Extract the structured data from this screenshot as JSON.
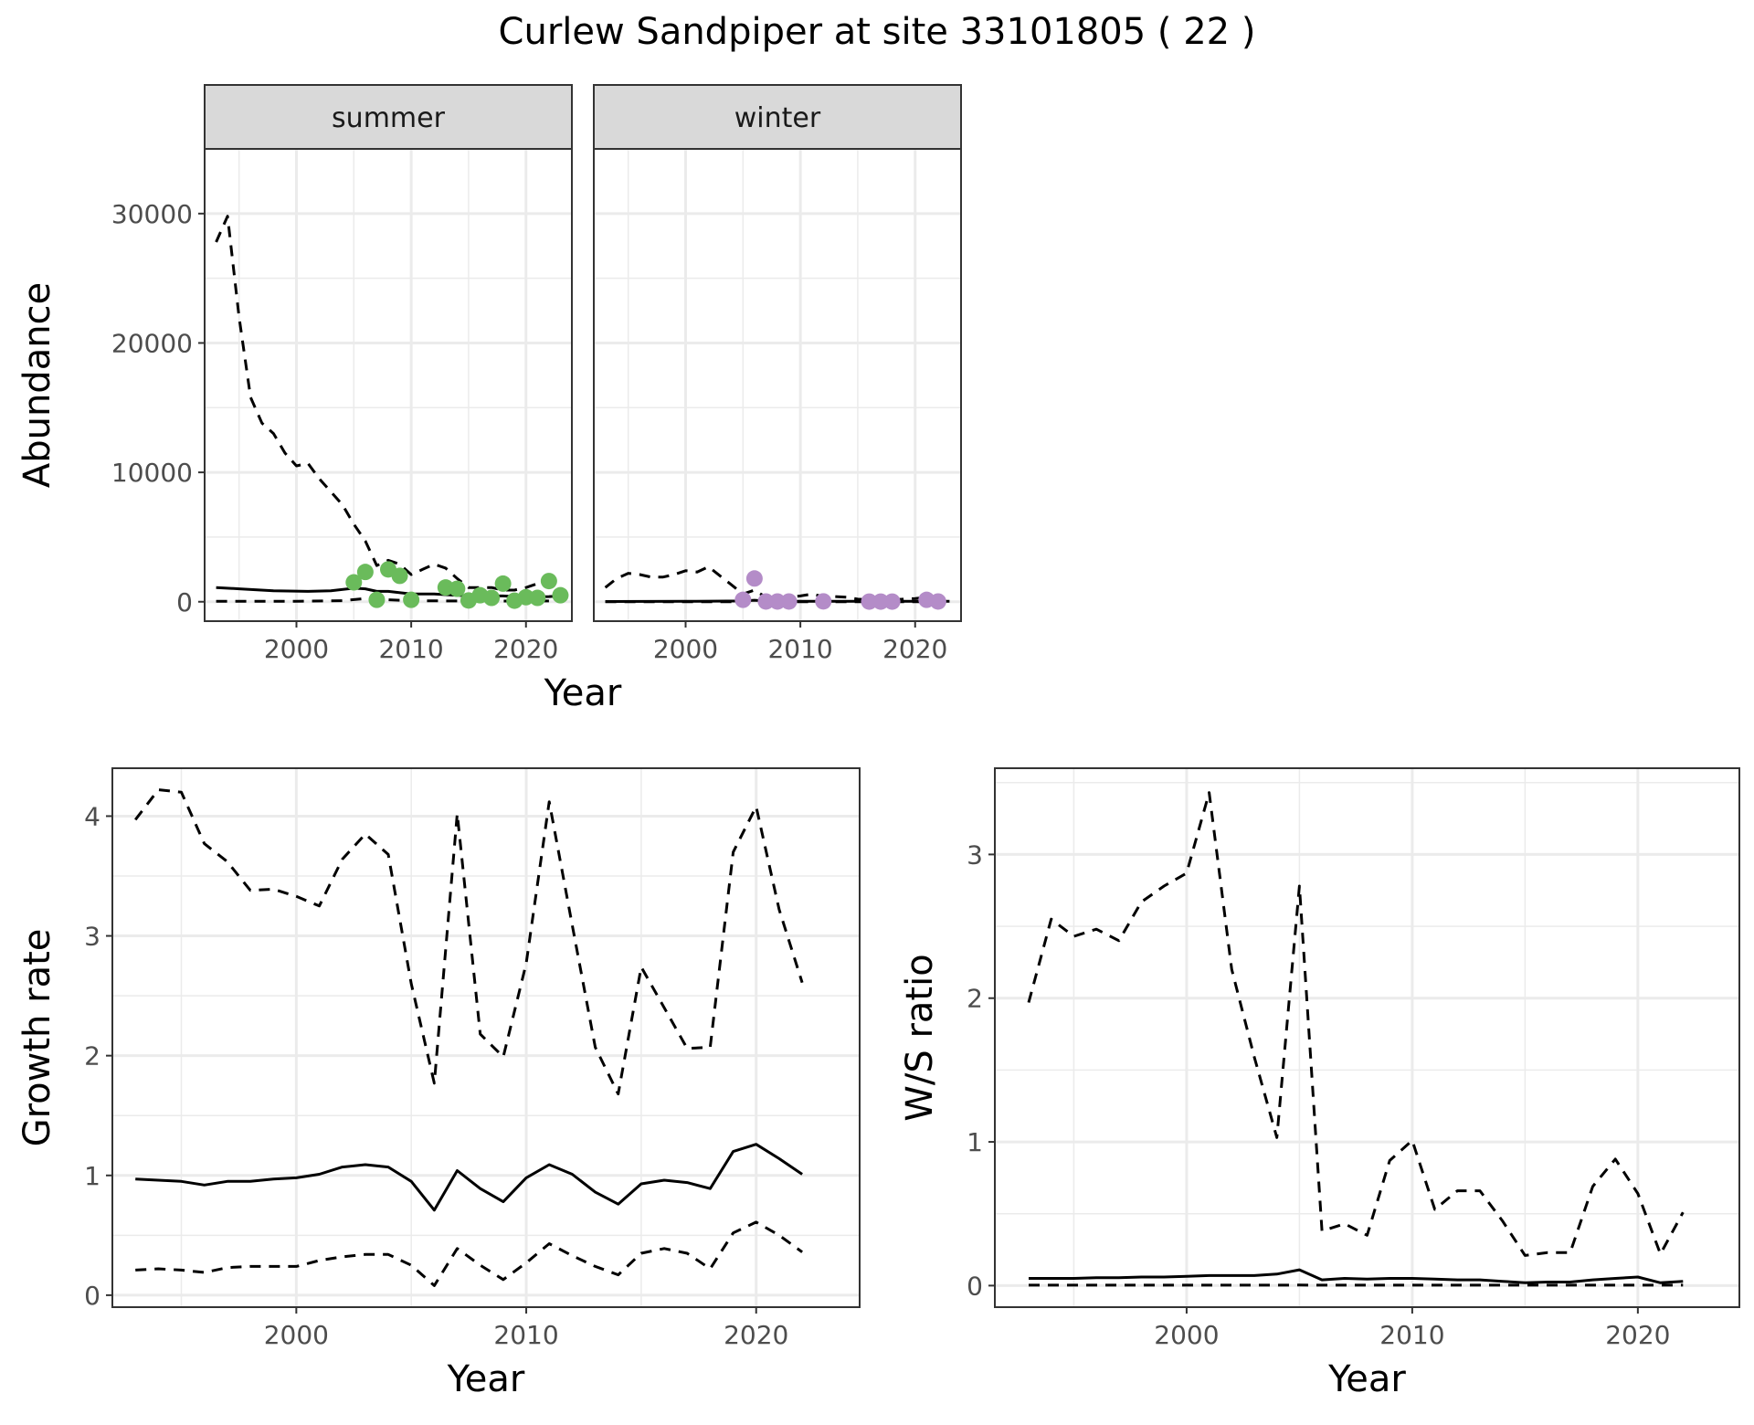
{
  "title": "Curlew Sandpiper at site 33101805 ( 22 )",
  "colors": {
    "summer_points": "#6ABB5B",
    "winter_points": "#B48CC8",
    "line": "#000000",
    "strip_fill": "#D9D9D9",
    "grid": "#EBEBEB"
  },
  "chart_data": [
    {
      "type": "line",
      "panel": "abundance",
      "facets": [
        "summer",
        "winter"
      ],
      "xlabel": "Year",
      "ylabel": "Abundance",
      "xlim": [
        1992,
        2024
      ],
      "ylim": [
        -1500,
        35000
      ],
      "xticks": [
        2000,
        2010,
        2020
      ],
      "yticks": [
        0,
        10000,
        20000,
        30000
      ],
      "grid": true,
      "facet_data": [
        {
          "label": "summer",
          "point_color": "summer_points",
          "points": {
            "x": [
              2005,
              2006,
              2007,
              2008,
              2009,
              2010,
              2013,
              2014,
              2015,
              2016,
              2017,
              2018,
              2019,
              2020,
              2021,
              2022,
              2023
            ],
            "y": [
              1500,
              2300,
              150,
              2500,
              2000,
              150,
              1100,
              1000,
              100,
              500,
              300,
              1400,
              80,
              350,
              300,
              1600,
              500
            ]
          },
          "series": [
            {
              "style": "solid",
              "x": [
                1993,
                1995,
                1998,
                2001,
                2003,
                2005,
                2006,
                2007,
                2008,
                2010,
                2012,
                2014,
                2016,
                2018,
                2020,
                2022,
                2023
              ],
              "values": [
                1100,
                1000,
                850,
                800,
                850,
                1050,
                1000,
                800,
                800,
                600,
                600,
                500,
                450,
                450,
                350,
                400,
                450
              ]
            },
            {
              "style": "dashed",
              "x": [
                1993,
                1994,
                1995,
                1996,
                1997,
                1998,
                1999,
                2000,
                2001,
                2002,
                2003,
                2004,
                2005,
                2006,
                2007,
                2008,
                2009,
                2010,
                2011,
                2012,
                2013,
                2014,
                2015,
                2016,
                2017,
                2018,
                2019,
                2020,
                2021,
                2022
              ],
              "values": [
                27800,
                29800,
                22000,
                15800,
                13800,
                13000,
                11500,
                10500,
                10700,
                9500,
                8500,
                7500,
                6000,
                4700,
                2800,
                3200,
                2900,
                2100,
                2500,
                2900,
                2600,
                1800,
                1100,
                1100,
                1100,
                900,
                900,
                1100,
                1400,
                2100
              ]
            },
            {
              "style": "dashed",
              "x": [
                1993,
                2000,
                2004,
                2006,
                2008,
                2010,
                2014,
                2018,
                2022
              ],
              "values": [
                30,
                40,
                80,
                250,
                150,
                80,
                60,
                50,
                60
              ]
            }
          ]
        },
        {
          "label": "winter",
          "point_color": "winter_points",
          "points": {
            "x": [
              2005,
              2006,
              2007,
              2008,
              2009,
              2012,
              2016,
              2017,
              2018,
              2021,
              2022
            ],
            "y": [
              150,
              1800,
              20,
              20,
              20,
              30,
              10,
              10,
              10,
              150,
              20
            ]
          },
          "series": [
            {
              "style": "solid",
              "x": [
                1993,
                2000,
                2005,
                2006,
                2007,
                2010,
                2015,
                2020,
                2023
              ],
              "values": [
                20,
                30,
                60,
                120,
                50,
                40,
                30,
                30,
                30
              ]
            },
            {
              "style": "dashed",
              "x": [
                1993,
                1994,
                1995,
                1996,
                1997,
                1998,
                1999,
                2000,
                2001,
                2002,
                2003,
                2004,
                2005,
                2006,
                2007,
                2008,
                2009,
                2010,
                2011,
                2012,
                2013,
                2014,
                2015,
                2016,
                2017,
                2018,
                2019,
                2020,
                2021,
                2022
              ],
              "values": [
                1100,
                1800,
                2200,
                2100,
                1900,
                1900,
                2100,
                2400,
                2300,
                2700,
                2000,
                1300,
                600,
                900,
                350,
                300,
                350,
                450,
                600,
                400,
                400,
                350,
                200,
                150,
                150,
                150,
                200,
                250,
                350,
                350
              ]
            },
            {
              "style": "dashed",
              "x": [
                1993,
                2000,
                2010,
                2022
              ],
              "values": [
                5,
                5,
                5,
                5
              ]
            }
          ]
        }
      ]
    },
    {
      "type": "line",
      "panel": "growth",
      "xlabel": "Year",
      "ylabel": "Growth rate",
      "xlim": [
        1992,
        2024.5
      ],
      "ylim": [
        -0.1,
        4.4
      ],
      "xticks": [
        2000,
        2010,
        2020
      ],
      "yticks": [
        0,
        1,
        2,
        3,
        4
      ],
      "grid": true,
      "x": [
        1993,
        1994,
        1995,
        1996,
        1997,
        1998,
        1999,
        2000,
        2001,
        2002,
        2003,
        2004,
        2005,
        2006,
        2007,
        2008,
        2009,
        2010,
        2011,
        2012,
        2013,
        2014,
        2015,
        2016,
        2017,
        2018,
        2019,
        2020,
        2021,
        2022
      ],
      "series": [
        {
          "style": "solid",
          "values": [
            0.97,
            0.96,
            0.95,
            0.92,
            0.95,
            0.95,
            0.97,
            0.98,
            1.01,
            1.07,
            1.09,
            1.07,
            0.95,
            0.71,
            1.04,
            0.89,
            0.78,
            0.98,
            1.09,
            1.01,
            0.86,
            0.76,
            0.93,
            0.96,
            0.94,
            0.89,
            1.2,
            1.26,
            1.14,
            1.01
          ]
        },
        {
          "style": "dashed",
          "values": [
            3.97,
            4.22,
            4.2,
            3.77,
            3.62,
            3.38,
            3.39,
            3.33,
            3.25,
            3.64,
            3.85,
            3.68,
            2.6,
            1.77,
            4.02,
            2.18,
            1.99,
            2.77,
            4.12,
            3.09,
            2.07,
            1.68,
            2.74,
            2.4,
            2.06,
            2.07,
            3.7,
            4.08,
            3.22,
            2.61
          ]
        },
        {
          "style": "dashed",
          "values": [
            0.21,
            0.22,
            0.21,
            0.19,
            0.23,
            0.24,
            0.24,
            0.24,
            0.29,
            0.32,
            0.34,
            0.34,
            0.25,
            0.08,
            0.39,
            0.25,
            0.13,
            0.27,
            0.43,
            0.33,
            0.24,
            0.17,
            0.35,
            0.39,
            0.35,
            0.22,
            0.52,
            0.61,
            0.5,
            0.36
          ]
        }
      ]
    },
    {
      "type": "line",
      "panel": "ratio",
      "xlabel": "Year",
      "ylabel": "W/S ratio",
      "xlim": [
        1991.5,
        2024.5
      ],
      "ylim": [
        -0.15,
        3.6
      ],
      "xticks": [
        2000,
        2010,
        2020
      ],
      "yticks": [
        0,
        1,
        2,
        3
      ],
      "grid": true,
      "x": [
        1993,
        1994,
        1995,
        1996,
        1997,
        1998,
        1999,
        2000,
        2001,
        2002,
        2003,
        2004,
        2005,
        2006,
        2007,
        2008,
        2009,
        2010,
        2011,
        2012,
        2013,
        2014,
        2015,
        2016,
        2017,
        2018,
        2019,
        2020,
        2021,
        2022
      ],
      "series": [
        {
          "style": "solid",
          "values": [
            0.05,
            0.05,
            0.05,
            0.055,
            0.055,
            0.06,
            0.06,
            0.065,
            0.07,
            0.07,
            0.07,
            0.08,
            0.11,
            0.04,
            0.05,
            0.045,
            0.05,
            0.05,
            0.045,
            0.04,
            0.04,
            0.03,
            0.02,
            0.025,
            0.025,
            0.04,
            0.05,
            0.06,
            0.02,
            0.03
          ]
        },
        {
          "style": "dashed",
          "values": [
            1.97,
            2.55,
            2.43,
            2.48,
            2.4,
            2.67,
            2.78,
            2.87,
            3.43,
            2.2,
            1.59,
            1.03,
            2.78,
            0.38,
            0.43,
            0.35,
            0.87,
            1.01,
            0.53,
            0.66,
            0.66,
            0.45,
            0.21,
            0.23,
            0.23,
            0.69,
            0.88,
            0.64,
            0.22,
            0.51
          ]
        },
        {
          "style": "dashed",
          "values": [
            0.003,
            0.003,
            0.003,
            0.003,
            0.003,
            0.003,
            0.003,
            0.003,
            0.003,
            0.003,
            0.003,
            0.003,
            0.004,
            0.003,
            0.003,
            0.003,
            0.003,
            0.003,
            0.003,
            0.003,
            0.003,
            0.003,
            0.003,
            0.003,
            0.003,
            0.003,
            0.003,
            0.003,
            0.003,
            0.003
          ]
        }
      ]
    }
  ]
}
